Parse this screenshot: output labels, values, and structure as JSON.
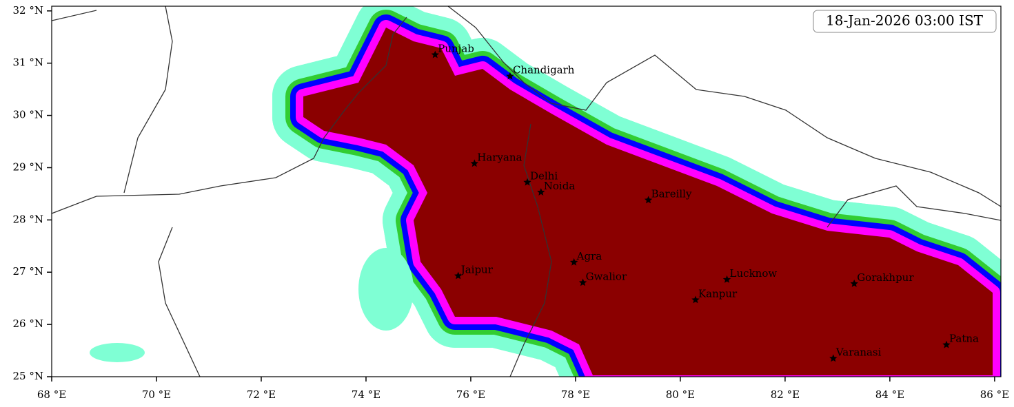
{
  "chart_data": {
    "type": "map",
    "title": "18-Jan-2026 03:00 IST",
    "xlim": [
      68,
      86.12
    ],
    "ylim": [
      25,
      32.09
    ],
    "xticks": [
      {
        "value": 68,
        "label": "68 °E"
      },
      {
        "value": 70,
        "label": "70 °E"
      },
      {
        "value": 72,
        "label": "72 °E"
      },
      {
        "value": 74,
        "label": "74 °E"
      },
      {
        "value": 76,
        "label": "76 °E"
      },
      {
        "value": 78,
        "label": "78 °E"
      },
      {
        "value": 80,
        "label": "80 °E"
      },
      {
        "value": 82,
        "label": "82 °E"
      },
      {
        "value": 84,
        "label": "84 °E"
      },
      {
        "value": 86,
        "label": "86 °E"
      }
    ],
    "yticks": [
      {
        "value": 25,
        "label": "25 °N"
      },
      {
        "value": 26,
        "label": "26 °N"
      },
      {
        "value": 27,
        "label": "27 °N"
      },
      {
        "value": 28,
        "label": "28 °N"
      },
      {
        "value": 29,
        "label": "29 °N"
      },
      {
        "value": 30,
        "label": "30 °N"
      },
      {
        "value": 31,
        "label": "31 °N"
      },
      {
        "value": 32,
        "label": "32 °N"
      }
    ],
    "labels": [
      "Punjab",
      "Chandigarh",
      "Haryana",
      "Delhi",
      "Noida",
      "Bareilly",
      "Agra",
      "Jaipur",
      "Gwalior",
      "Lucknow",
      "Kanpur",
      "Gorakhpur",
      "Varanasi",
      "Patna"
    ],
    "x": [
      75.32,
      76.75,
      76.07,
      77.08,
      77.34,
      79.39,
      77.97,
      75.76,
      78.14,
      80.89,
      80.29,
      83.32,
      82.92,
      85.08
    ],
    "y": [
      31.16,
      30.75,
      29.08,
      28.72,
      28.53,
      28.38,
      27.19,
      26.93,
      26.8,
      26.86,
      26.47,
      26.78,
      25.35,
      25.61
    ]
  }
}
